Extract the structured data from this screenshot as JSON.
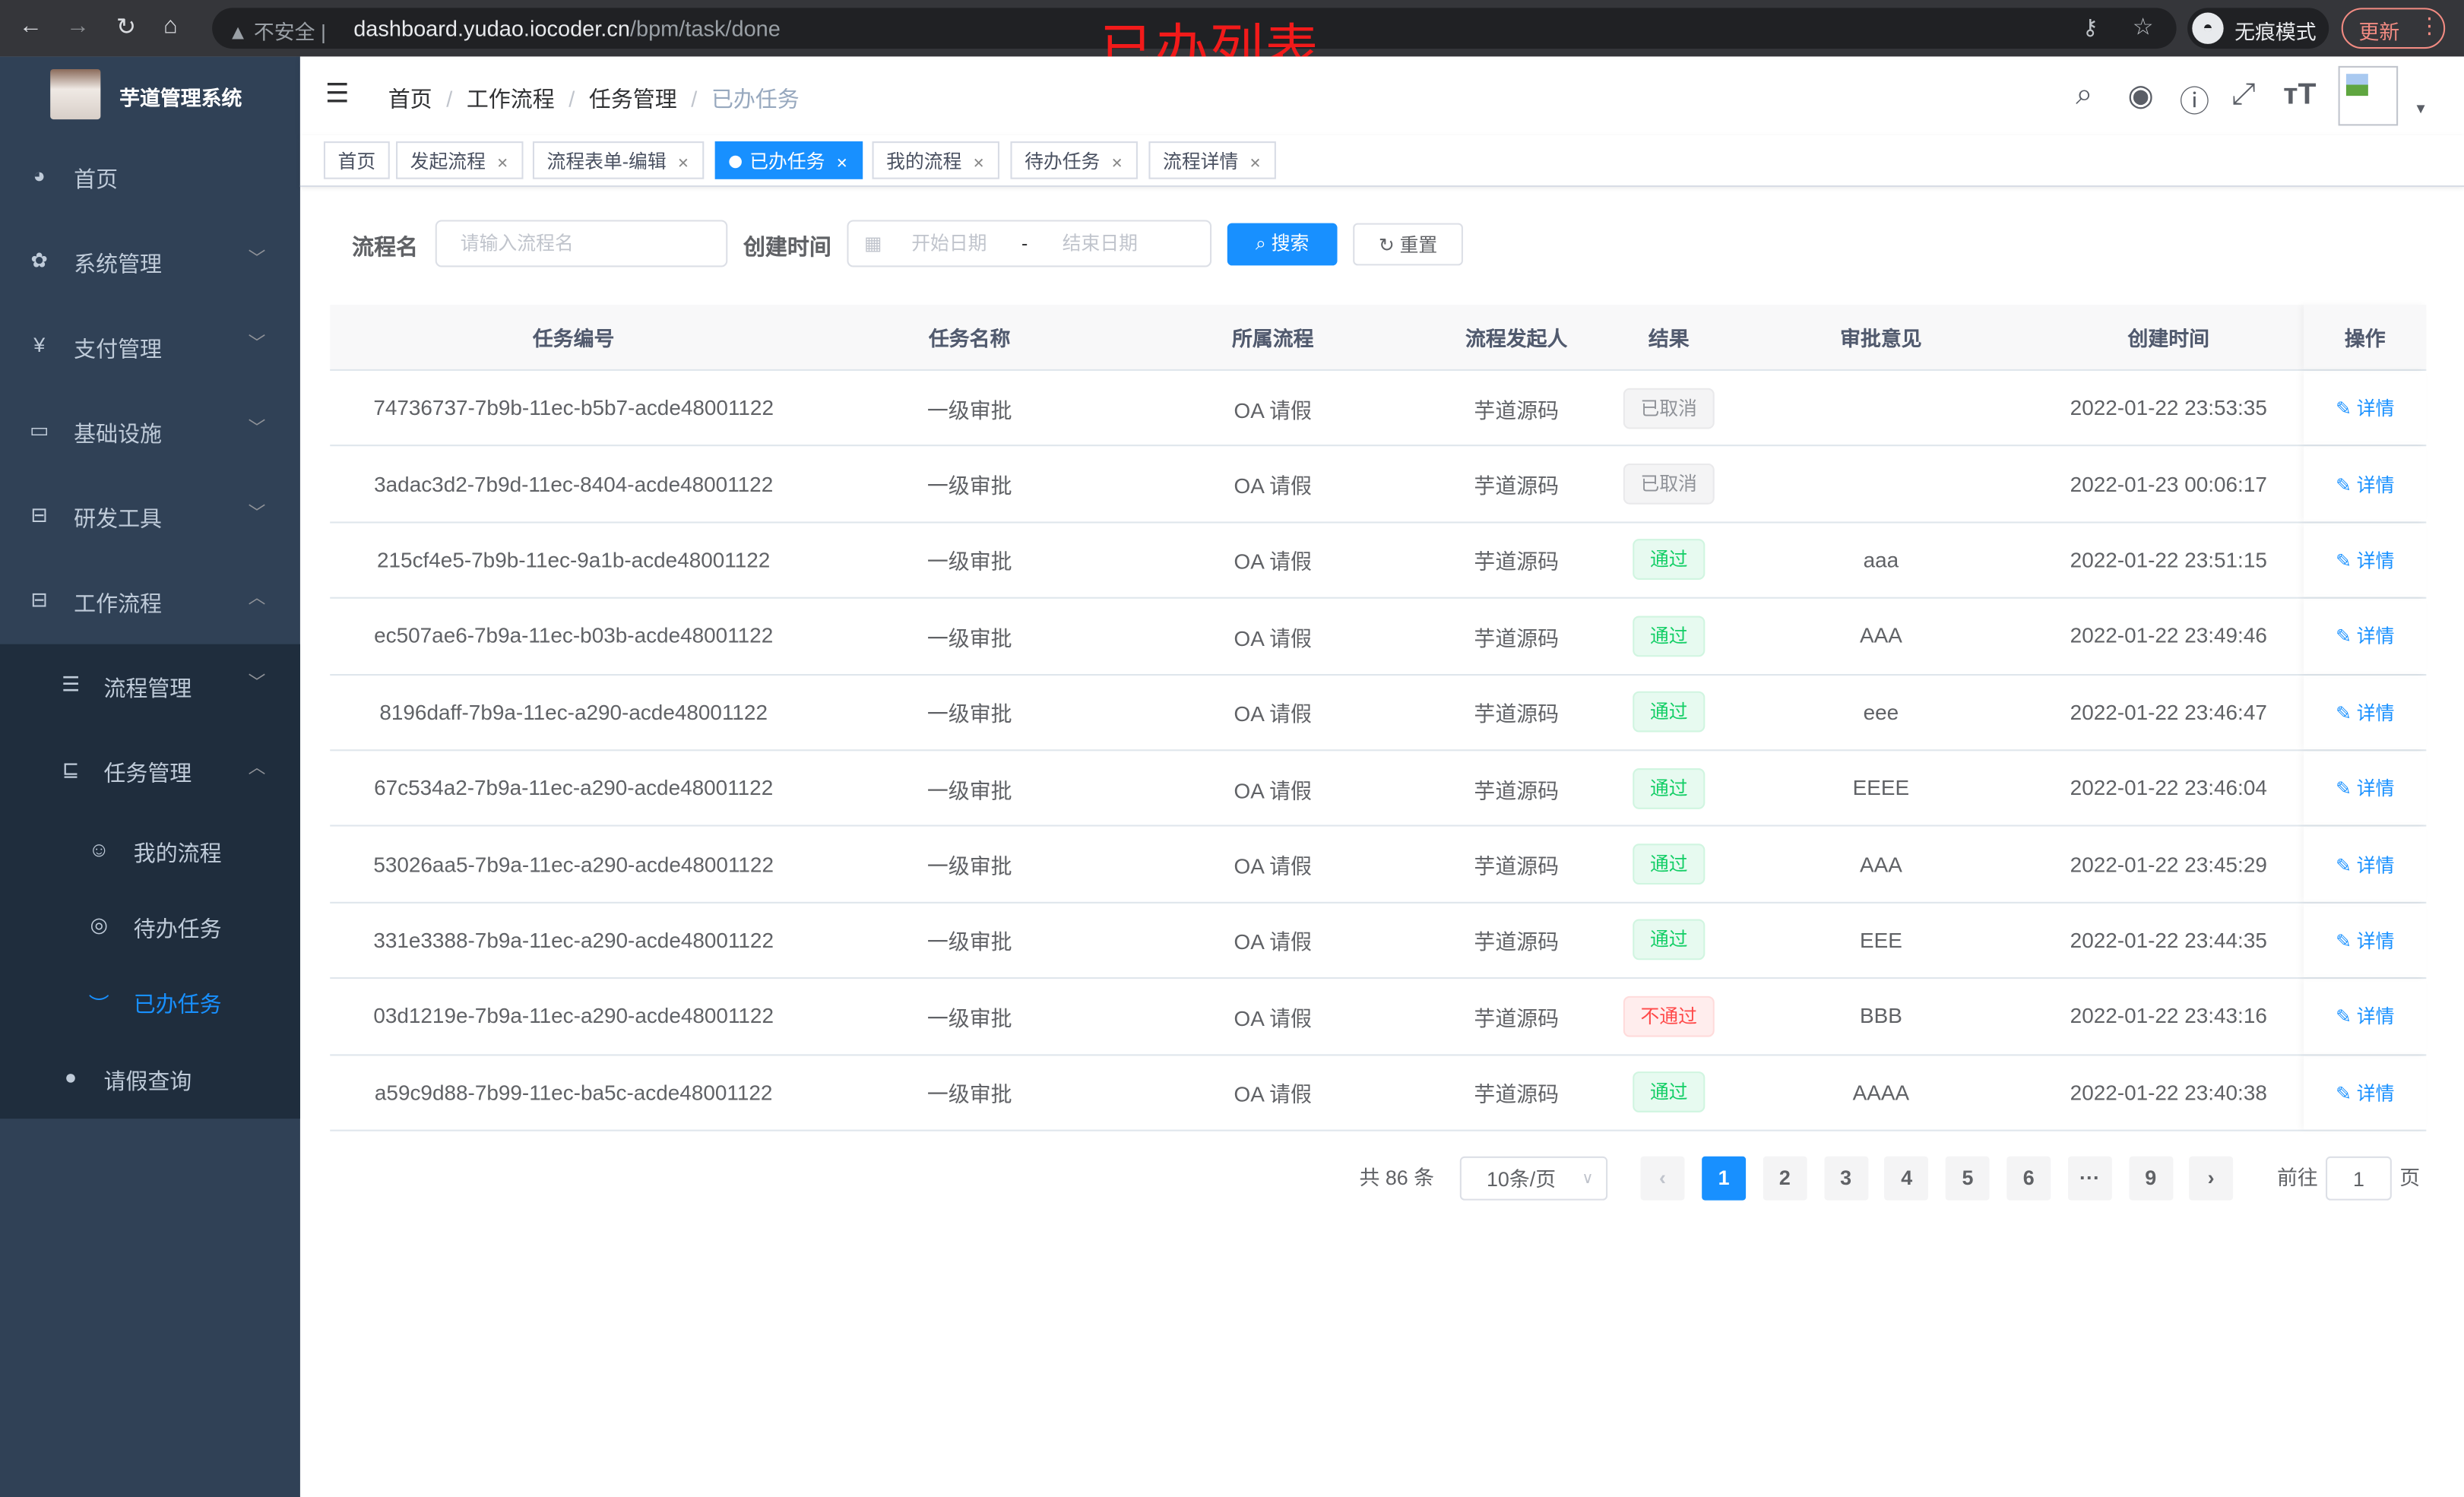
{
  "browser": {
    "security": "不安全",
    "url_host": "dashboard.yudao.iocoder.cn",
    "url_path": "/bpm/task/done",
    "incognito_label": "无痕模式",
    "update_label": "更新"
  },
  "annotation": "已办列表",
  "sidebar": {
    "title": "芋道管理系统",
    "items": [
      {
        "label": "首页",
        "icon": "dashboard-icon"
      },
      {
        "label": "系统管理",
        "icon": "gear-icon"
      },
      {
        "label": "支付管理",
        "icon": "yen-icon"
      },
      {
        "label": "基础设施",
        "icon": "monitor-icon"
      },
      {
        "label": "研发工具",
        "icon": "toolbox-icon"
      },
      {
        "label": "工作流程",
        "icon": "toolbox-icon"
      },
      {
        "label": "流程管理",
        "icon": "list-icon"
      },
      {
        "label": "任务管理",
        "icon": "task-icon"
      },
      {
        "label": "我的流程",
        "icon": "face-icon"
      },
      {
        "label": "待办任务",
        "icon": "eye-icon"
      },
      {
        "label": "已办任务",
        "icon": "eye-closed-icon"
      },
      {
        "label": "请假查询",
        "icon": "user-icon"
      }
    ]
  },
  "breadcrumb": [
    "首页",
    "工作流程",
    "任务管理",
    "已办任务"
  ],
  "tags": [
    "首页",
    "发起流程",
    "流程表单-编辑",
    "已办任务",
    "我的流程",
    "待办任务",
    "流程详情"
  ],
  "search": {
    "name_label": "流程名",
    "name_placeholder": "请输入流程名",
    "time_label": "创建时间",
    "start_placeholder": "开始日期",
    "range_sep": "-",
    "end_placeholder": "结束日期",
    "search_btn": "搜索",
    "reset_btn": "重置"
  },
  "table": {
    "columns": [
      "任务编号",
      "任务名称",
      "所属流程",
      "流程发起人",
      "结果",
      "审批意见",
      "创建时间",
      "操作"
    ],
    "action_label": "详情",
    "rows": [
      {
        "id": "74736737-7b9b-11ec-b5b7-acde48001122",
        "name": "一级审批",
        "process": "OA 请假",
        "starter": "芋道源码",
        "result": "已取消",
        "status": "cancel",
        "comment": "",
        "time": "2022-01-22 23:53:35"
      },
      {
        "id": "3adac3d2-7b9d-11ec-8404-acde48001122",
        "name": "一级审批",
        "process": "OA 请假",
        "starter": "芋道源码",
        "result": "已取消",
        "status": "cancel",
        "comment": "",
        "time": "2022-01-23 00:06:17"
      },
      {
        "id": "215cf4e5-7b9b-11ec-9a1b-acde48001122",
        "name": "一级审批",
        "process": "OA 请假",
        "starter": "芋道源码",
        "result": "通过",
        "status": "ok",
        "comment": "aaa",
        "time": "2022-01-22 23:51:15"
      },
      {
        "id": "ec507ae6-7b9a-11ec-b03b-acde48001122",
        "name": "一级审批",
        "process": "OA 请假",
        "starter": "芋道源码",
        "result": "通过",
        "status": "ok",
        "comment": "AAA",
        "time": "2022-01-22 23:49:46"
      },
      {
        "id": "8196daff-7b9a-11ec-a290-acde48001122",
        "name": "一级审批",
        "process": "OA 请假",
        "starter": "芋道源码",
        "result": "通过",
        "status": "ok",
        "comment": "eee",
        "time": "2022-01-22 23:46:47"
      },
      {
        "id": "67c534a2-7b9a-11ec-a290-acde48001122",
        "name": "一级审批",
        "process": "OA 请假",
        "starter": "芋道源码",
        "result": "通过",
        "status": "ok",
        "comment": "EEEE",
        "time": "2022-01-22 23:46:04"
      },
      {
        "id": "53026aa5-7b9a-11ec-a290-acde48001122",
        "name": "一级审批",
        "process": "OA 请假",
        "starter": "芋道源码",
        "result": "通过",
        "status": "ok",
        "comment": "AAA",
        "time": "2022-01-22 23:45:29"
      },
      {
        "id": "331e3388-7b9a-11ec-a290-acde48001122",
        "name": "一级审批",
        "process": "OA 请假",
        "starter": "芋道源码",
        "result": "通过",
        "status": "ok",
        "comment": "EEE",
        "time": "2022-01-22 23:44:35"
      },
      {
        "id": "03d1219e-7b9a-11ec-a290-acde48001122",
        "name": "一级审批",
        "process": "OA 请假",
        "starter": "芋道源码",
        "result": "不通过",
        "status": "fail",
        "comment": "BBB",
        "time": "2022-01-22 23:43:16"
      },
      {
        "id": "a59c9d88-7b99-11ec-ba5c-acde48001122",
        "name": "一级审批",
        "process": "OA 请假",
        "starter": "芋道源码",
        "result": "通过",
        "status": "ok",
        "comment": "AAAA",
        "time": "2022-01-22 23:40:38"
      }
    ]
  },
  "pagination": {
    "total": "共 86 条",
    "page_size": "10条/页",
    "pages": [
      "1",
      "2",
      "3",
      "4",
      "5",
      "6",
      "···",
      "9"
    ],
    "current": "1",
    "goto_label": "前往",
    "goto_value": "1",
    "page_suffix": "页"
  },
  "colors": {
    "primary": "#1890ff",
    "sidebar": "#304156",
    "submenu": "#1f2d3d",
    "success": "#13ce66",
    "danger": "#ff4949",
    "annotation": "#f21a1a"
  }
}
